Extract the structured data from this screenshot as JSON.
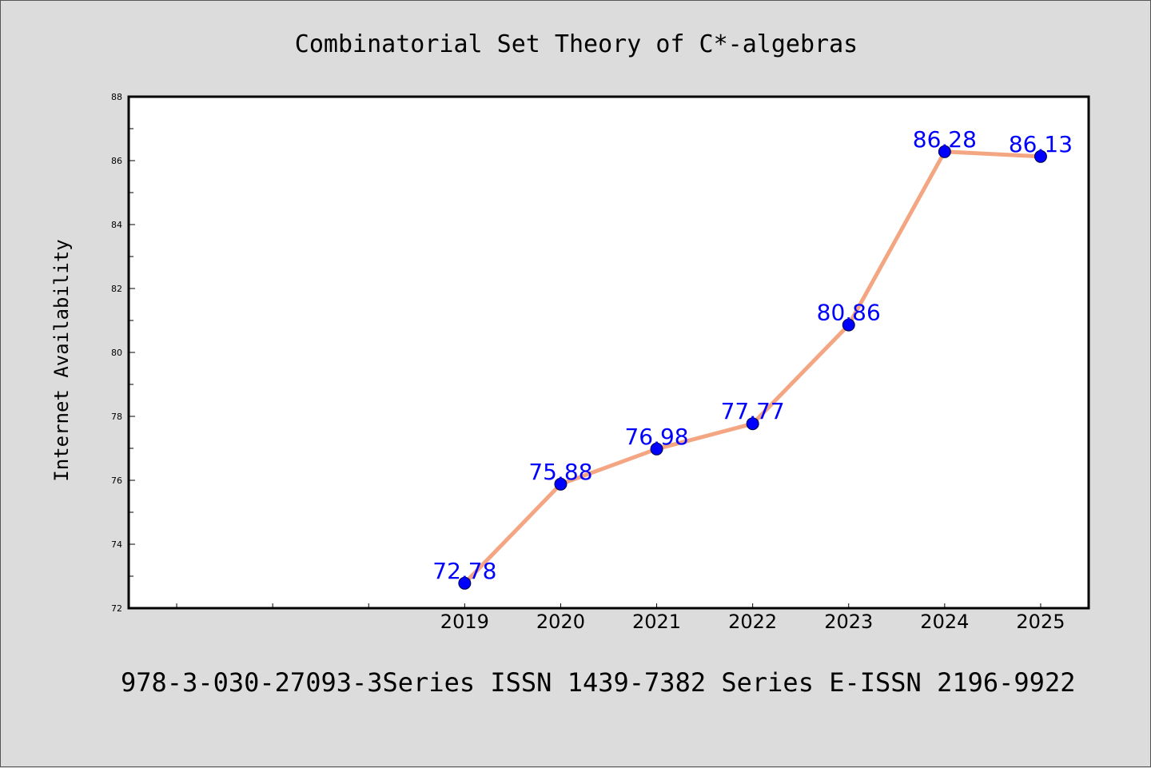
{
  "chart_data": {
    "type": "line",
    "title": "Combinatorial Set Theory of C*-algebras",
    "ylabel": "Internet Availability",
    "xlabel": "",
    "x": [
      "2019",
      "2020",
      "2021",
      "2022",
      "2023",
      "2024",
      "2025"
    ],
    "series": [
      {
        "values": [
          72.78,
          75.88,
          76.98,
          77.77,
          80.86,
          86.28,
          86.13
        ],
        "labels": [
          "72.78",
          "75.88",
          "76.98",
          "77.77",
          "80.86",
          "86.28",
          "86.13"
        ]
      }
    ],
    "yticks": [
      72,
      74,
      76,
      78,
      80,
      82,
      84,
      86,
      88
    ],
    "ylim": [
      72,
      88
    ],
    "xlim": [
      2015.5,
      2025.5
    ],
    "grid": false,
    "colors": {
      "line": "#f4a582",
      "marker": "#0000ff",
      "label": "#0000ff",
      "frame": "#000000"
    }
  },
  "footer": "978-3-030-27093-3Series ISSN 1439-7382 Series E-ISSN 2196-9922"
}
